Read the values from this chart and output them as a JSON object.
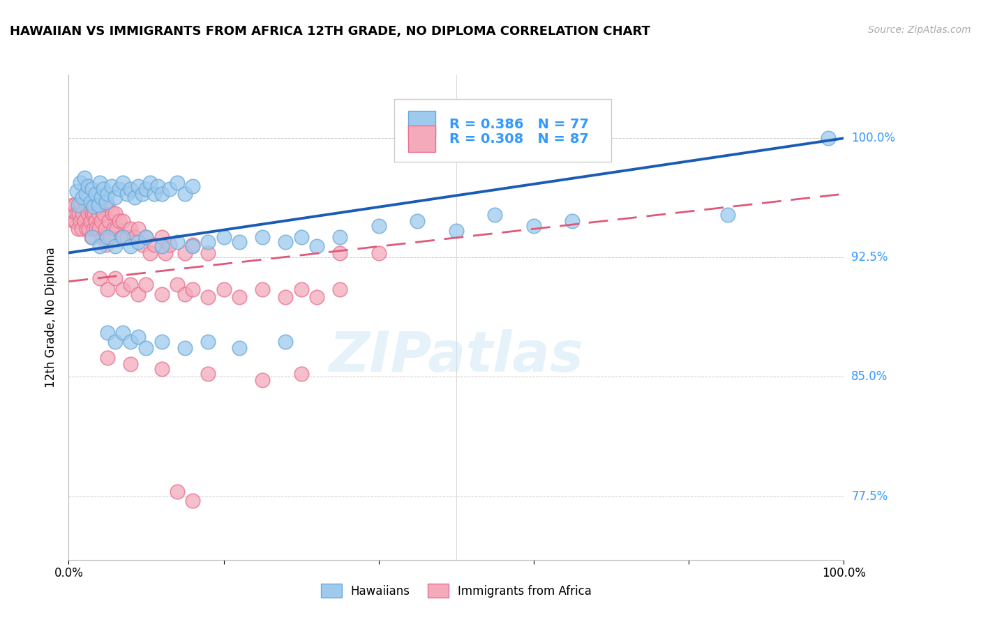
{
  "title": "HAWAIIAN VS IMMIGRANTS FROM AFRICA 12TH GRADE, NO DIPLOMA CORRELATION CHART",
  "source": "Source: ZipAtlas.com",
  "ylabel": "12th Grade, No Diploma",
  "xlim": [
    0,
    1.0
  ],
  "ylim": [
    0.735,
    1.04
  ],
  "yticks": [
    0.775,
    0.85,
    0.925,
    1.0
  ],
  "ytick_labels": [
    "77.5%",
    "85.0%",
    "92.5%",
    "100.0%"
  ],
  "xticks": [
    0.0,
    0.2,
    0.4,
    0.6,
    0.8,
    1.0
  ],
  "xtick_labels": [
    "0.0%",
    "",
    "",
    "",
    "",
    "100.0%"
  ],
  "series1_name": "Hawaiians",
  "series1_R": 0.386,
  "series1_N": 77,
  "series1_color": "#9ECAEE",
  "series1_edge": "#6BAAD8",
  "series2_name": "Immigrants from Africa",
  "series2_R": 0.308,
  "series2_N": 87,
  "series2_color": "#F4AABB",
  "series2_edge": "#E87090",
  "trend1_color": "#1A5BB5",
  "trend2_color": "#E05878",
  "watermark": "ZIPatlas",
  "background_color": "#ffffff",
  "legend_color": "#3399FF",
  "blue_scatter": [
    [
      0.01,
      0.967
    ],
    [
      0.012,
      0.958
    ],
    [
      0.015,
      0.972
    ],
    [
      0.018,
      0.963
    ],
    [
      0.02,
      0.975
    ],
    [
      0.022,
      0.965
    ],
    [
      0.025,
      0.97
    ],
    [
      0.028,
      0.96
    ],
    [
      0.03,
      0.968
    ],
    [
      0.032,
      0.957
    ],
    [
      0.035,
      0.965
    ],
    [
      0.038,
      0.958
    ],
    [
      0.04,
      0.972
    ],
    [
      0.042,
      0.963
    ],
    [
      0.045,
      0.968
    ],
    [
      0.048,
      0.96
    ],
    [
      0.05,
      0.965
    ],
    [
      0.055,
      0.97
    ],
    [
      0.06,
      0.963
    ],
    [
      0.065,
      0.968
    ],
    [
      0.07,
      0.972
    ],
    [
      0.075,
      0.965
    ],
    [
      0.08,
      0.968
    ],
    [
      0.085,
      0.963
    ],
    [
      0.09,
      0.97
    ],
    [
      0.095,
      0.965
    ],
    [
      0.1,
      0.968
    ],
    [
      0.105,
      0.972
    ],
    [
      0.11,
      0.965
    ],
    [
      0.115,
      0.97
    ],
    [
      0.12,
      0.965
    ],
    [
      0.13,
      0.968
    ],
    [
      0.14,
      0.972
    ],
    [
      0.15,
      0.965
    ],
    [
      0.16,
      0.97
    ],
    [
      0.03,
      0.938
    ],
    [
      0.04,
      0.932
    ],
    [
      0.05,
      0.938
    ],
    [
      0.06,
      0.932
    ],
    [
      0.07,
      0.938
    ],
    [
      0.08,
      0.932
    ],
    [
      0.09,
      0.935
    ],
    [
      0.1,
      0.938
    ],
    [
      0.12,
      0.932
    ],
    [
      0.14,
      0.935
    ],
    [
      0.16,
      0.932
    ],
    [
      0.18,
      0.935
    ],
    [
      0.2,
      0.938
    ],
    [
      0.22,
      0.935
    ],
    [
      0.25,
      0.938
    ],
    [
      0.28,
      0.935
    ],
    [
      0.3,
      0.938
    ],
    [
      0.32,
      0.932
    ],
    [
      0.35,
      0.938
    ],
    [
      0.05,
      0.878
    ],
    [
      0.06,
      0.872
    ],
    [
      0.07,
      0.878
    ],
    [
      0.08,
      0.872
    ],
    [
      0.09,
      0.875
    ],
    [
      0.1,
      0.868
    ],
    [
      0.12,
      0.872
    ],
    [
      0.15,
      0.868
    ],
    [
      0.18,
      0.872
    ],
    [
      0.22,
      0.868
    ],
    [
      0.28,
      0.872
    ],
    [
      0.4,
      0.945
    ],
    [
      0.45,
      0.948
    ],
    [
      0.5,
      0.942
    ],
    [
      0.55,
      0.952
    ],
    [
      0.6,
      0.945
    ],
    [
      0.65,
      0.948
    ],
    [
      0.85,
      0.952
    ],
    [
      0.98,
      1.0
    ]
  ],
  "pink_scatter": [
    [
      0.005,
      0.958
    ],
    [
      0.007,
      0.948
    ],
    [
      0.008,
      0.958
    ],
    [
      0.009,
      0.948
    ],
    [
      0.01,
      0.953
    ],
    [
      0.012,
      0.943
    ],
    [
      0.013,
      0.953
    ],
    [
      0.015,
      0.948
    ],
    [
      0.016,
      0.958
    ],
    [
      0.017,
      0.943
    ],
    [
      0.018,
      0.953
    ],
    [
      0.02,
      0.948
    ],
    [
      0.022,
      0.958
    ],
    [
      0.023,
      0.943
    ],
    [
      0.025,
      0.953
    ],
    [
      0.026,
      0.943
    ],
    [
      0.028,
      0.948
    ],
    [
      0.029,
      0.938
    ],
    [
      0.03,
      0.953
    ],
    [
      0.032,
      0.943
    ],
    [
      0.033,
      0.953
    ],
    [
      0.035,
      0.948
    ],
    [
      0.036,
      0.943
    ],
    [
      0.038,
      0.953
    ],
    [
      0.039,
      0.943
    ],
    [
      0.04,
      0.958
    ],
    [
      0.042,
      0.948
    ],
    [
      0.044,
      0.938
    ],
    [
      0.045,
      0.953
    ],
    [
      0.047,
      0.943
    ],
    [
      0.048,
      0.933
    ],
    [
      0.05,
      0.958
    ],
    [
      0.052,
      0.948
    ],
    [
      0.054,
      0.938
    ],
    [
      0.056,
      0.953
    ],
    [
      0.058,
      0.943
    ],
    [
      0.06,
      0.953
    ],
    [
      0.062,
      0.943
    ],
    [
      0.065,
      0.948
    ],
    [
      0.068,
      0.938
    ],
    [
      0.07,
      0.948
    ],
    [
      0.075,
      0.938
    ],
    [
      0.08,
      0.943
    ],
    [
      0.085,
      0.938
    ],
    [
      0.09,
      0.943
    ],
    [
      0.095,
      0.933
    ],
    [
      0.1,
      0.938
    ],
    [
      0.105,
      0.928
    ],
    [
      0.11,
      0.933
    ],
    [
      0.12,
      0.938
    ],
    [
      0.125,
      0.928
    ],
    [
      0.13,
      0.933
    ],
    [
      0.15,
      0.928
    ],
    [
      0.16,
      0.933
    ],
    [
      0.18,
      0.928
    ],
    [
      0.04,
      0.912
    ],
    [
      0.05,
      0.905
    ],
    [
      0.06,
      0.912
    ],
    [
      0.07,
      0.905
    ],
    [
      0.08,
      0.908
    ],
    [
      0.09,
      0.902
    ],
    [
      0.1,
      0.908
    ],
    [
      0.12,
      0.902
    ],
    [
      0.14,
      0.908
    ],
    [
      0.15,
      0.902
    ],
    [
      0.16,
      0.905
    ],
    [
      0.18,
      0.9
    ],
    [
      0.2,
      0.905
    ],
    [
      0.22,
      0.9
    ],
    [
      0.25,
      0.905
    ],
    [
      0.28,
      0.9
    ],
    [
      0.3,
      0.905
    ],
    [
      0.32,
      0.9
    ],
    [
      0.35,
      0.905
    ],
    [
      0.05,
      0.862
    ],
    [
      0.08,
      0.858
    ],
    [
      0.12,
      0.855
    ],
    [
      0.18,
      0.852
    ],
    [
      0.25,
      0.848
    ],
    [
      0.3,
      0.852
    ],
    [
      0.14,
      0.778
    ],
    [
      0.16,
      0.772
    ],
    [
      0.35,
      0.928
    ],
    [
      0.4,
      0.928
    ]
  ],
  "trend1_x": [
    0.0,
    1.0
  ],
  "trend1_y": [
    0.928,
    1.0
  ],
  "trend2_x": [
    0.0,
    1.0
  ],
  "trend2_y": [
    0.91,
    0.965
  ]
}
